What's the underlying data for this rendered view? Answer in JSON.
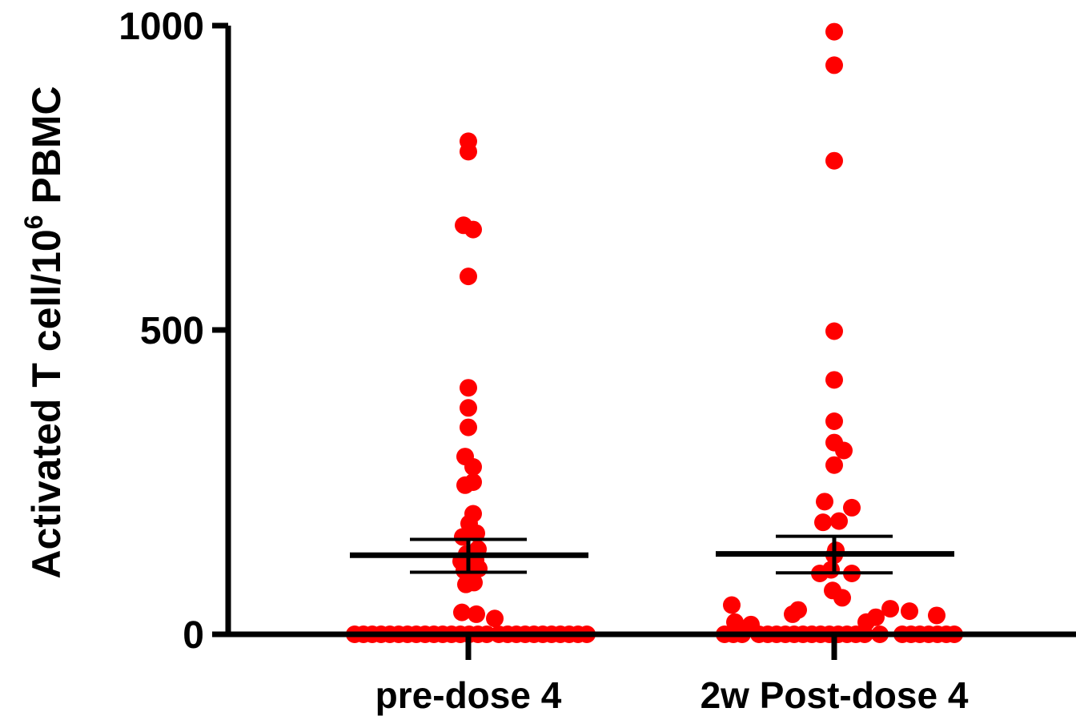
{
  "chart_data": {
    "type": "scatter",
    "ylabel": {
      "main": "Activated T cell/10",
      "superscript": "6",
      "suffix": " PBMC"
    },
    "ylim": [
      0,
      1000
    ],
    "yticks": [
      {
        "value": 0,
        "label": "0"
      },
      {
        "value": 500,
        "label": "500"
      },
      {
        "value": 1000,
        "label": "1000"
      }
    ],
    "grid": false,
    "point_color": "#ff0000",
    "errorbar_color": "#000000",
    "series": [
      {
        "category": "pre-dose 4",
        "mean": 130,
        "error_upper": 156,
        "error_lower": 102,
        "points": [
          {
            "dx": -142,
            "y": 0
          },
          {
            "dx": -131,
            "y": 0
          },
          {
            "dx": -120,
            "y": 0
          },
          {
            "dx": -109,
            "y": 0
          },
          {
            "dx": -98,
            "y": 0
          },
          {
            "dx": -87,
            "y": 0
          },
          {
            "dx": -76,
            "y": 0
          },
          {
            "dx": -65,
            "y": 0
          },
          {
            "dx": -54,
            "y": 0
          },
          {
            "dx": -43,
            "y": 0
          },
          {
            "dx": -32,
            "y": 0
          },
          {
            "dx": -21,
            "y": 0
          },
          {
            "dx": -10,
            "y": 0
          },
          {
            "dx": 1,
            "y": 0
          },
          {
            "dx": 12,
            "y": 0
          },
          {
            "dx": 23,
            "y": 0
          },
          {
            "dx": 38,
            "y": 0
          },
          {
            "dx": 49,
            "y": 0
          },
          {
            "dx": 60,
            "y": 0
          },
          {
            "dx": 71,
            "y": 0
          },
          {
            "dx": 82,
            "y": 0
          },
          {
            "dx": 93,
            "y": 0
          },
          {
            "dx": 104,
            "y": 0
          },
          {
            "dx": 115,
            "y": 0
          },
          {
            "dx": 126,
            "y": 0
          },
          {
            "dx": 137,
            "y": 0
          },
          {
            "dx": 148,
            "y": 0
          },
          {
            "dx": 33,
            "y": 26
          },
          {
            "dx": -8,
            "y": 36
          },
          {
            "dx": 10,
            "y": 33
          },
          {
            "dx": -3,
            "y": 82
          },
          {
            "dx": 7,
            "y": 85
          },
          {
            "dx": -5,
            "y": 105
          },
          {
            "dx": 13,
            "y": 108
          },
          {
            "dx": -9,
            "y": 120
          },
          {
            "dx": 9,
            "y": 122
          },
          {
            "dx": -2,
            "y": 132
          },
          {
            "dx": 12,
            "y": 140
          },
          {
            "dx": -7,
            "y": 160
          },
          {
            "dx": 10,
            "y": 166
          },
          {
            "dx": 1,
            "y": 182
          },
          {
            "dx": 6,
            "y": 198
          },
          {
            "dx": -4,
            "y": 245
          },
          {
            "dx": 6,
            "y": 250
          },
          {
            "dx": 6,
            "y": 275
          },
          {
            "dx": -4,
            "y": 292
          },
          {
            "dx": 0,
            "y": 340
          },
          {
            "dx": 0,
            "y": 372
          },
          {
            "dx": 0,
            "y": 405
          },
          {
            "dx": 0,
            "y": 588
          },
          {
            "dx": -6,
            "y": 672
          },
          {
            "dx": 6,
            "y": 665
          },
          {
            "dx": 0,
            "y": 793
          },
          {
            "dx": 0,
            "y": 810
          }
        ]
      },
      {
        "category": "2w Post-dose 4",
        "mean": 132,
        "error_upper": 161,
        "error_lower": 101,
        "points": [
          {
            "dx": -137,
            "y": 0
          },
          {
            "dx": -126,
            "y": 0
          },
          {
            "dx": -115,
            "y": 0
          },
          {
            "dx": -94,
            "y": 0
          },
          {
            "dx": -83,
            "y": 0
          },
          {
            "dx": -72,
            "y": 0
          },
          {
            "dx": -61,
            "y": 0
          },
          {
            "dx": -50,
            "y": 0
          },
          {
            "dx": -39,
            "y": 0
          },
          {
            "dx": -28,
            "y": 0
          },
          {
            "dx": -17,
            "y": 0
          },
          {
            "dx": -6,
            "y": 0
          },
          {
            "dx": 5,
            "y": 0
          },
          {
            "dx": 16,
            "y": 0
          },
          {
            "dx": 27,
            "y": 0
          },
          {
            "dx": 38,
            "y": 0
          },
          {
            "dx": 57,
            "y": 0
          },
          {
            "dx": 85,
            "y": 0
          },
          {
            "dx": 96,
            "y": 0
          },
          {
            "dx": 107,
            "y": 0
          },
          {
            "dx": 118,
            "y": 0
          },
          {
            "dx": 129,
            "y": 0
          },
          {
            "dx": 140,
            "y": 0
          },
          {
            "dx": 150,
            "y": 0
          },
          {
            "dx": -124,
            "y": 20
          },
          {
            "dx": -104,
            "y": 16
          },
          {
            "dx": -128,
            "y": 48
          },
          {
            "dx": -52,
            "y": 33
          },
          {
            "dx": -45,
            "y": 40
          },
          {
            "dx": 40,
            "y": 20
          },
          {
            "dx": 52,
            "y": 28
          },
          {
            "dx": 70,
            "y": 42
          },
          {
            "dx": 94,
            "y": 38
          },
          {
            "dx": 128,
            "y": 31
          },
          {
            "dx": 10,
            "y": 60
          },
          {
            "dx": -2,
            "y": 72
          },
          {
            "dx": -18,
            "y": 100
          },
          {
            "dx": -4,
            "y": 106
          },
          {
            "dx": 22,
            "y": 100
          },
          {
            "dx": 0,
            "y": 130
          },
          {
            "dx": 2,
            "y": 138
          },
          {
            "dx": -14,
            "y": 184
          },
          {
            "dx": 6,
            "y": 186
          },
          {
            "dx": -12,
            "y": 218
          },
          {
            "dx": 22,
            "y": 208
          },
          {
            "dx": 0,
            "y": 278
          },
          {
            "dx": 0,
            "y": 315
          },
          {
            "dx": 12,
            "y": 302
          },
          {
            "dx": 0,
            "y": 350
          },
          {
            "dx": 0,
            "y": 418
          },
          {
            "dx": 0,
            "y": 498
          },
          {
            "dx": 0,
            "y": 778
          },
          {
            "dx": 0,
            "y": 935
          },
          {
            "dx": 0,
            "y": 990
          }
        ]
      }
    ]
  }
}
